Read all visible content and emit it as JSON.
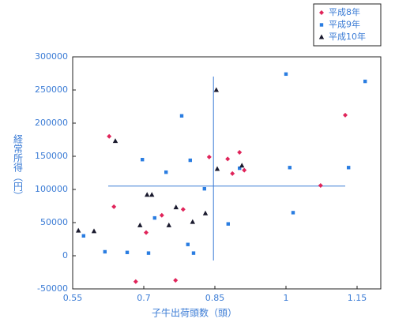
{
  "chart_data": {
    "type": "scatter",
    "xlabel": "子牛出荷頭数（頭）",
    "ylabel": "経常所得（円）",
    "xlim": [
      0.55,
      1.2
    ],
    "ylim": [
      -50000,
      300000
    ],
    "xticks": [
      0.55,
      0.7,
      0.85,
      1,
      1.15
    ],
    "yticks": [
      -50000,
      0,
      50000,
      100000,
      150000,
      200000,
      250000,
      300000
    ],
    "legend": "top-right",
    "crosshair": {
      "x": 0.847,
      "y": 105000
    },
    "series": [
      {
        "name": "平成8年",
        "color": "#e0245a",
        "marker": "diamond",
        "x": [
          0.627,
          0.637,
          0.705,
          0.683,
          0.738,
          0.783,
          0.767,
          0.838,
          0.877,
          0.887,
          0.902,
          0.912,
          1.073,
          1.125
        ],
        "values": [
          180000,
          74000,
          35000,
          -39000,
          61000,
          70000,
          -37000,
          149000,
          146000,
          124000,
          156000,
          129000,
          106000,
          212000
        ]
      },
      {
        "name": "平成9年",
        "color": "#2a7de1",
        "marker": "square",
        "x": [
          0.573,
          0.618,
          0.665,
          0.697,
          0.71,
          0.723,
          0.747,
          0.78,
          0.793,
          0.798,
          0.805,
          0.828,
          0.878,
          0.902,
          1.0,
          1.008,
          1.015,
          1.132,
          1.167
        ],
        "values": [
          30000,
          6000,
          5000,
          145000,
          4000,
          57000,
          126000,
          211000,
          17000,
          144000,
          4000,
          101000,
          48000,
          132000,
          274000,
          133000,
          65000,
          133000,
          263000
        ]
      },
      {
        "name": "平成10年",
        "color": "#1a1a2e",
        "marker": "triangle",
        "x": [
          0.562,
          0.595,
          0.64,
          0.692,
          0.707,
          0.717,
          0.753,
          0.768,
          0.803,
          0.83,
          0.853,
          0.855,
          0.907
        ],
        "values": [
          38000,
          37000,
          173000,
          46000,
          92000,
          92000,
          46000,
          73000,
          51000,
          64000,
          250000,
          131000,
          136000
        ]
      }
    ]
  }
}
